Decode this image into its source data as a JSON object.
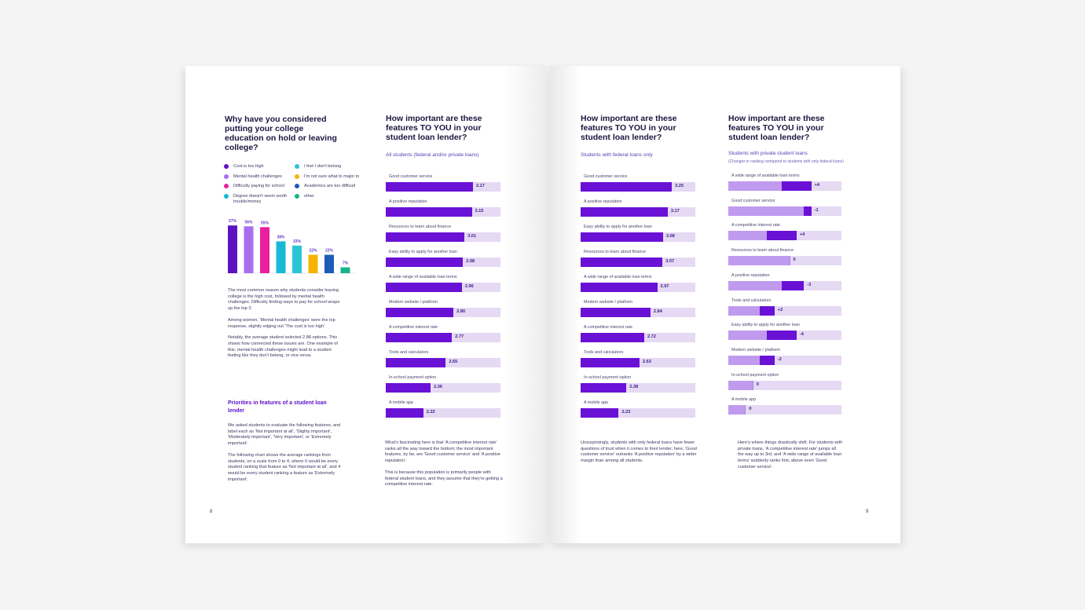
{
  "colors": {
    "accent": "#6a11d6",
    "track": "#e5d9f3",
    "title": "#1a1640",
    "light_bar": "#c09aee"
  },
  "left_page": {
    "chart_question": "Why have you considered putting your college education on hold or leaving college?",
    "legend": [
      {
        "label": "Cost is too high",
        "color": "#5b13c2"
      },
      {
        "label": "I feel I don't belong",
        "color": "#2bc6d6"
      },
      {
        "label": "Mental health challenges",
        "color": "#a86ff0"
      },
      {
        "label": "I'm not sure what to major in",
        "color": "#f4b400"
      },
      {
        "label": "Difficulty paying for school",
        "color": "#ea1ea0"
      },
      {
        "label": "Academics are too difficult",
        "color": "#1c5bb8"
      },
      {
        "label": "Degree doesn't seem worth trouble/money",
        "color": "#18b9d4"
      },
      {
        "label": "other",
        "color": "#16b48a"
      }
    ],
    "intro_paragraphs": [
      "The most common reason why students consider leaving college is the high cost, followed by mental health challenges.  Difficulty finding ways to pay for school wraps up the top 3.",
      "Among women, 'Mental health challenges' were the top response, slightly edging out 'The cost is too high'",
      "Notably, the average student selected 2.88 options. This shows how connected these issues are. One example of this: mental health challenges might lead to a student feeling like they don't belong, or vice versa."
    ],
    "section_heading": "Priorities in features of a student loan lender",
    "section_paragraphs": [
      "We asked students to evaluate the following features, and label each as 'Not important at all', 'Slighty important', 'Moderately important', 'Very important', or 'Extremely important'.",
      "The following chart shows the average rankings from students, on a scale from 0 to 4, where 0 would be every student ranking that feature as 'Not important at all', and 4 would be every student ranking a feature as 'Extremely important'."
    ],
    "page_number": "8",
    "all_students": {
      "title": "How important are these features TO YOU in your student loan lender?",
      "subtitle": "All students (federal and/or private loans)",
      "caption_paragraphs": [
        "What's fascinating here is that 'A competitive interest rate' ranks all the way toward the bottom; the most important features, by far, are 'Good customer service' and 'A positive reputation'.",
        "This is because this population is primarily people with federal student loans, and they assume that they're getting a competitive interest rate."
      ]
    }
  },
  "right_page": {
    "federal": {
      "title": "How important are these features TO YOU in your student loan lender?",
      "subtitle": "Students with federal loans only",
      "caption": "Unsurprisingly, students with only federal loans have fewer questions of trust when it comes to their lender; here, 'Good customer service' outranks 'A positive reputation' by a wider margin than among all students."
    },
    "private": {
      "title": "How important are these features TO YOU in your student loan lender?",
      "subtitle": "Students with private student loans",
      "subtitle_note": "(Changes in ranking compared to students with only federal loans)",
      "caption": "Here's where things drastically shift. For students with private loans, 'A competitive interest rate' jumps all the way up to 3rd, and 'A wide range of available loan terms' suddenly ranks first, above even 'Good customer service'."
    },
    "page_number": "9"
  },
  "chart_data": [
    {
      "type": "bar",
      "title": "Why have you considered putting your college education on hold or leaving college?",
      "categories": [
        "Cost is too high",
        "Mental health challenges",
        "Difficulty paying for school",
        "Degree doesn't seem worth trouble/money",
        "I feel I don't belong",
        "I'm not sure what to major in",
        "Academics are too difficult",
        "other"
      ],
      "values": [
        57,
        56,
        55,
        38,
        33,
        22,
        22,
        7
      ],
      "labels": [
        "57%",
        "56%",
        "55%",
        "38%",
        "33%",
        "22%",
        "22%",
        "7%"
      ],
      "colors": [
        "#5b13c2",
        "#a86ff0",
        "#ea1ea0",
        "#18b9d4",
        "#2bc6d6",
        "#f4b400",
        "#1c5bb8",
        "#16b48a"
      ],
      "ylim": [
        0,
        60
      ]
    },
    {
      "type": "bar",
      "orientation": "horizontal",
      "title": "How important are these features TO YOU in your student loan lender?",
      "subtitle": "All students (federal and/or private loans)",
      "categories": [
        "Good customer service",
        "A positive reputation",
        "Resources to learn about finance",
        "Easy ability to apply for another loan",
        "A wide range of available loan terms",
        "Modern website / platform",
        "A competitive interest rate",
        "Tools and calculators",
        "In-school payment option",
        "A mobile app"
      ],
      "values": [
        3.17,
        3.15,
        3.01,
        2.98,
        2.96,
        2.8,
        2.77,
        2.65,
        2.36,
        2.22
      ],
      "labels": [
        "3.17",
        "3.15",
        "3.01",
        "2.98",
        "2.96",
        "2.80",
        "2.77",
        "2.65",
        "2.36",
        "2.22"
      ],
      "xlim": [
        0,
        4
      ]
    },
    {
      "type": "bar",
      "orientation": "horizontal",
      "title": "How important are these features TO YOU in your student loan lender?",
      "subtitle": "Students with federal loans only",
      "categories": [
        "Good customer service",
        "A positive reputation",
        "Easy ability to apply for another loan",
        "Resources to learn about finance",
        "A wide range of available loan terms",
        "Modern website / platform",
        "A competitive interest rate",
        "Tools and calculators",
        "In-school payment option",
        "A mobile app"
      ],
      "values": [
        3.25,
        3.17,
        3.08,
        3.07,
        2.97,
        2.84,
        2.72,
        2.63,
        2.38,
        2.23
      ],
      "labels": [
        "3.25",
        "3.17",
        "3.08",
        "3.07",
        "2.97",
        "2.84",
        "2.72",
        "2.63",
        "2.38",
        "2.23"
      ],
      "xlim": [
        0,
        4
      ]
    },
    {
      "type": "bar",
      "orientation": "horizontal",
      "title": "How important are these features TO YOU in your student loan lender?",
      "subtitle": "Students with private student loans",
      "categories": [
        "A wide range of available loan terms",
        "Good customer service",
        "A competitive interest rate",
        "Resources to learn about finance",
        "A positive reputation",
        "Tools and calculators",
        "Easy ability to apply for another loan",
        "Modern website / platform",
        "In-school payment option",
        "A mobile app"
      ],
      "rank_change": [
        4,
        -1,
        4,
        0,
        -3,
        2,
        -4,
        -2,
        0,
        0
      ],
      "labels": [
        "+4",
        "-1",
        "+4",
        "0",
        "-3",
        "+2",
        "-4",
        "-2",
        "0",
        "0"
      ],
      "base_rank": [
        5,
        1,
        7,
        4,
        2,
        8,
        3,
        6,
        9,
        10
      ],
      "total_ranks": 10
    }
  ]
}
